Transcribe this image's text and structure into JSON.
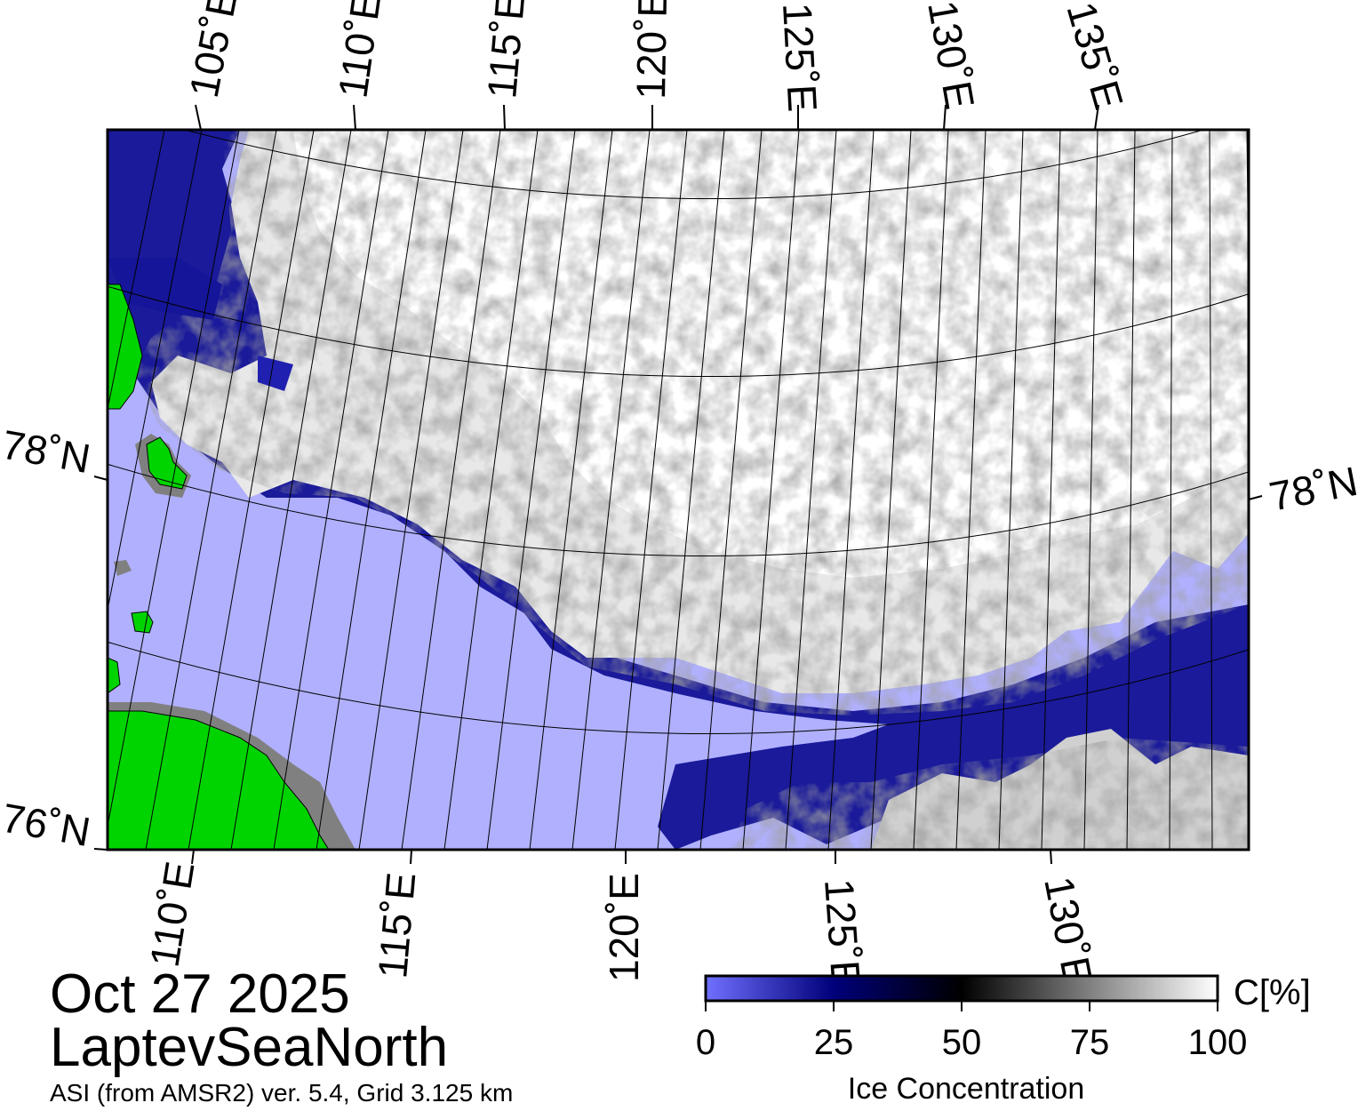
{
  "map": {
    "region": "LaptevSeaNorth",
    "top_lon_labels": [
      "105˚E",
      "110˚E",
      "115˚E",
      "120˚E",
      "125˚E",
      "130˚E",
      "135˚E"
    ],
    "bottom_lon_labels": [
      "110˚E",
      "115˚E",
      "120˚E",
      "125˚E",
      "130˚E"
    ],
    "left_lat_labels": [
      "78˚N",
      "76˚N"
    ],
    "right_lat_labels": [
      "78˚N"
    ],
    "colors": {
      "open_water": "#b0b0ff",
      "land": "#00d400",
      "coast_gray": "#808080",
      "ice_high": "#ffffff",
      "ice_mid": "#808080",
      "ice_low": "#000000",
      "ice_very_low": "#00007a"
    }
  },
  "info": {
    "date": "Oct 27 2025",
    "region_name": "LaptevSeaNorth",
    "product": "ASI (from AMSR2) ver. 5.4,  Grid 3.125 km"
  },
  "colorbar": {
    "unit_label": "C[%]",
    "title": "Ice Concentration",
    "ticks": [
      "0",
      "25",
      "50",
      "75",
      "100"
    ],
    "stops": [
      "#7070ff",
      "#00007a",
      "#000000",
      "#808080",
      "#ffffff"
    ]
  }
}
